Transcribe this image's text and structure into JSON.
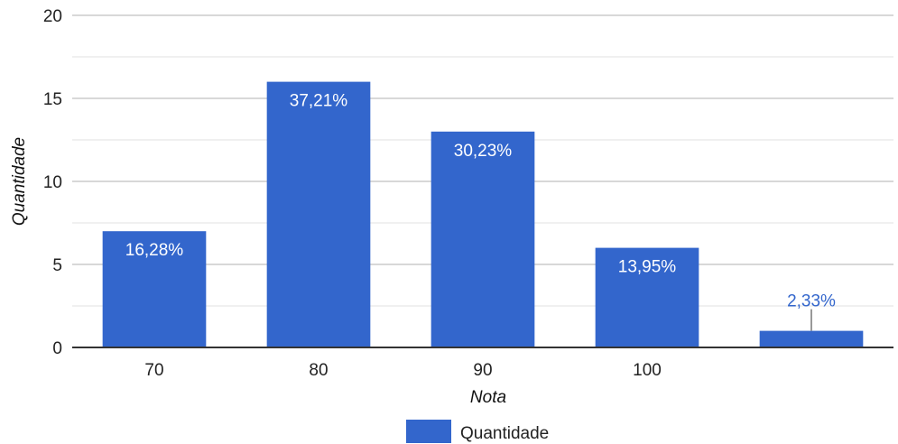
{
  "chart_data": {
    "type": "bar",
    "categories": [
      "70",
      "80",
      "90",
      "100",
      ""
    ],
    "series": [
      {
        "name": "Quantidade",
        "values": [
          7,
          16,
          13,
          6,
          1
        ],
        "labels": [
          "16,28%",
          "37,21%",
          "30,23%",
          "13,95%",
          "2,33%"
        ]
      }
    ],
    "xlabel": "Nota",
    "ylabel": "Quantidade",
    "ylim": [
      0,
      20
    ],
    "yticks": [
      "0",
      "5",
      "10",
      "15",
      "20"
    ],
    "grid": true,
    "legend_position": "bottom",
    "colors": {
      "bar": "#3366cc",
      "label_inside": "#ffffff",
      "label_outside": "#3366cc",
      "gridline": "#cccccc",
      "minor_gridline": "#ebebeb",
      "baseline": "#333333",
      "leader": "#999999"
    }
  }
}
